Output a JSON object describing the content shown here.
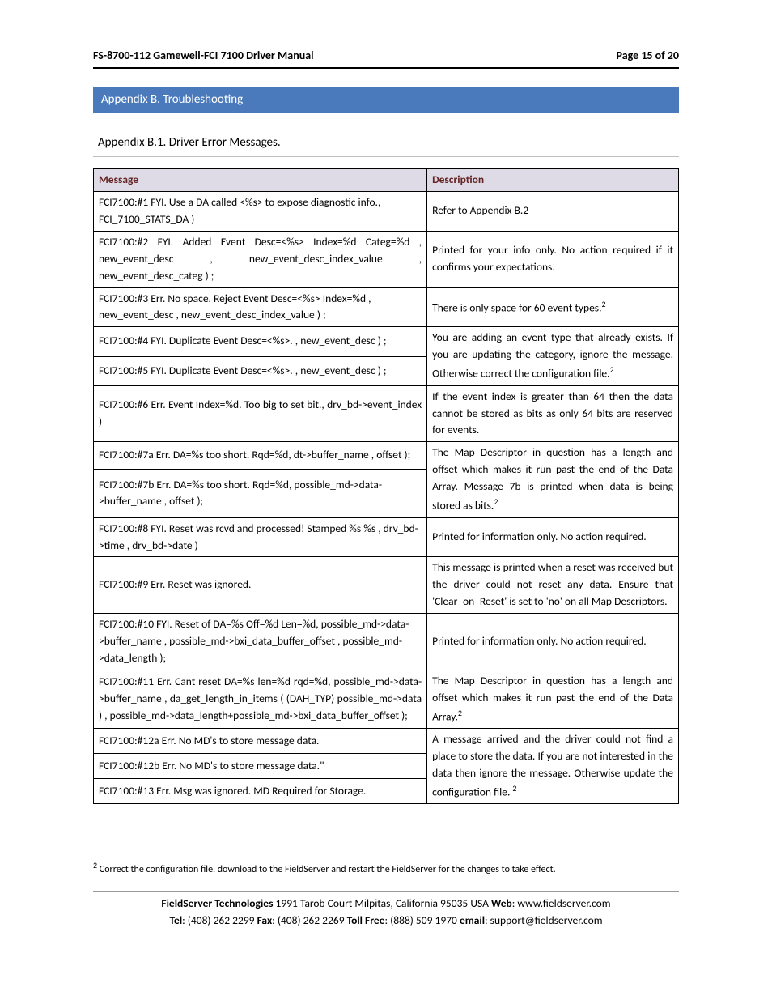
{
  "header": {
    "title": "FS-8700-112 Gamewell-FCI 7100 Driver Manual",
    "page": "Page 15 of 20"
  },
  "appendix": {
    "title": "Appendix B. Troubleshooting",
    "sub": "Appendix B.1. Driver Error Messages."
  },
  "table": {
    "col_message": "Message",
    "col_description": "Description",
    "rows": [
      {
        "msg": "FCI7100:#1 FYI. Use a DA called <%s> to expose diagnostic info., FCI_7100_STATS_DA )",
        "desc": "Refer to Appendix B.2",
        "msg_rowspan": 1,
        "desc_rowspan": 1,
        "msg_justify": false,
        "desc_sup": false
      },
      {
        "msg": "FCI7100:#2 FYI. Added Event Desc=<%s> Index=%d Categ=%d , new_event_desc , new_event_desc_index_value , new_event_desc_categ ) ;",
        "desc": "Printed for your info only. No action required if it confirms your expectations.",
        "msg_rowspan": 1,
        "desc_rowspan": 1,
        "msg_justify": true,
        "desc_sup": false
      },
      {
        "msg": "FCI7100:#3 Err. No space. Reject Event Desc=<%s> Index=%d , new_event_desc , new_event_desc_index_value ) ;",
        "desc": "There is only space for 60 event types.",
        "msg_rowspan": 1,
        "desc_rowspan": 1,
        "msg_justify": false,
        "desc_sup": true,
        "desc_sup_text": "2"
      },
      {
        "msg": "FCI7100:#4 FYI. Duplicate Event Desc=<%s>. , new_event_desc ) ;",
        "desc": "You are adding an event type that already exists. If you are updating the category, ignore the message. Otherwise correct the configuration file.",
        "msg_rowspan": 1,
        "desc_rowspan": 2,
        "msg_justify": false,
        "desc_sup": true,
        "desc_sup_text": "2"
      },
      {
        "msg": "FCI7100:#5 FYI. Duplicate Event Desc=<%s>. , new_event_desc ) ;",
        "msg_rowspan": 1,
        "desc_rowspan": 0,
        "msg_justify": false
      },
      {
        "msg": "FCI7100:#6 Err. Event Index=%d. Too big to set bit., drv_bd->event_index )",
        "desc": "If the event index is greater than 64 then the data cannot be stored as bits as only 64 bits are reserved for events.",
        "msg_rowspan": 1,
        "desc_rowspan": 1,
        "msg_justify": true,
        "desc_sup": false
      },
      {
        "msg": "FCI7100:#7a Err. DA=%s too short. Rqd=%d, dt->buffer_name , offset );",
        "desc": "The Map Descriptor in question has a length and offset which makes it run past the end of the Data Array. Message 7b is printed when data is being stored as bits.",
        "msg_rowspan": 1,
        "desc_rowspan": 2,
        "msg_justify": false,
        "desc_sup": true,
        "desc_sup_text": "2"
      },
      {
        "msg": "FCI7100:#7b Err. DA=%s too short. Rqd=%d, possible_md->data->buffer_name , offset );",
        "msg_rowspan": 1,
        "desc_rowspan": 0,
        "msg_justify": false
      },
      {
        "msg": "FCI7100:#8 FYI. Reset was rcvd and processed! Stamped %s %s , drv_bd->time , drv_bd->date )",
        "desc": "Printed for information only. No action required.",
        "msg_rowspan": 1,
        "desc_rowspan": 1,
        "msg_justify": false,
        "desc_sup": false
      },
      {
        "msg": "FCI7100:#9 Err. Reset was ignored.",
        "desc": "This message is printed when a reset was received but the driver could not reset any data. Ensure that 'Clear_on_Reset' is set to 'no' on all Map Descriptors.",
        "msg_rowspan": 1,
        "desc_rowspan": 1,
        "msg_justify": false,
        "desc_sup": false
      },
      {
        "msg": "FCI7100:#10 FYI. Reset of DA=%s Off=%d Len=%d, possible_md->data->buffer_name , possible_md->bxi_data_buffer_offset , possible_md->data_length );",
        "desc": "Printed for information only. No action required.",
        "msg_rowspan": 1,
        "desc_rowspan": 1,
        "msg_justify": false,
        "desc_sup": false
      },
      {
        "msg": "FCI7100:#11 Err. Cant reset DA=%s len=%d rqd=%d, possible_md->data->buffer_name , da_get_length_in_items ( (DAH_TYP) possible_md->data ) , possible_md->data_length+possible_md->bxi_data_buffer_offset );",
        "desc": "The Map Descriptor in question has a length and offset which makes it run past the end of the Data Array.",
        "msg_rowspan": 1,
        "desc_rowspan": 1,
        "msg_justify": true,
        "desc_sup": true,
        "desc_sup_text": "2"
      },
      {
        "msg": "FCI7100:#12a Err. No MD's to store message data.",
        "desc": "A message arrived and the driver could not find a place to store the data. If you are not interested in the data then ignore the message. Otherwise update the configuration file. ",
        "msg_rowspan": 1,
        "desc_rowspan": 3,
        "msg_justify": false,
        "desc_sup": true,
        "desc_sup_text": "2"
      },
      {
        "msg": "FCI7100:#12b Err. No MD's to store message data.\"",
        "msg_rowspan": 1,
        "desc_rowspan": 0,
        "msg_justify": false
      },
      {
        "msg": "FCI7100:#13 Err. Msg was ignored. MD Required for Storage.",
        "msg_rowspan": 1,
        "desc_rowspan": 0,
        "msg_justify": false
      }
    ]
  },
  "footnote": {
    "marker": "2",
    "text": " Correct the configuration file, download to the FieldServer and restart the FieldServer for the changes to take effect."
  },
  "footer": {
    "company": "FieldServer Technologies",
    "address": " 1991 Tarob Court Milpitas, California 95035 USA   ",
    "web_label": "Web",
    "web": ": www.fieldserver.com",
    "tel_label": "Tel",
    "tel": ": (408) 262 2299   ",
    "fax_label": "Fax",
    "fax": ": (408) 262 2269   ",
    "tollfree_label": "Toll Free",
    "tollfree": ": (888) 509 1970   ",
    "email_label": "email",
    "email": ": support@fieldserver.com"
  },
  "colors": {
    "bar_bg": "#4a7abc",
    "th_bg": "#dedbe7",
    "th_fg": "#632423"
  }
}
